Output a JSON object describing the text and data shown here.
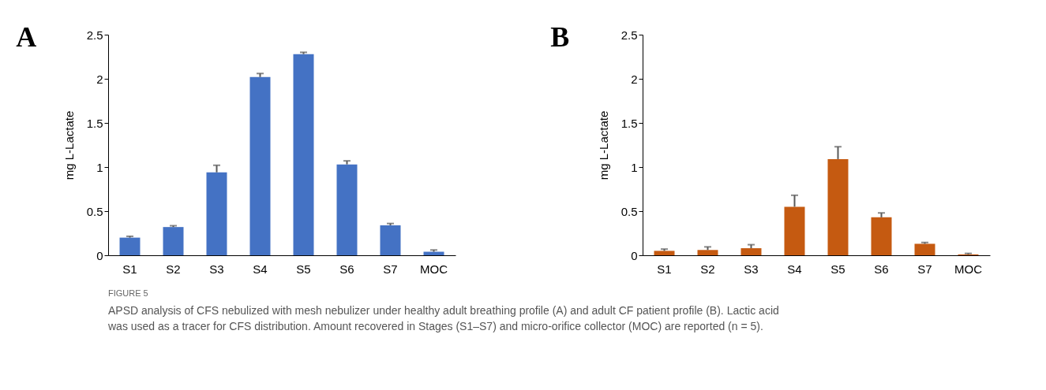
{
  "chart_data": [
    {
      "type": "bar",
      "title": "A",
      "ylabel": "mg L-Lactate",
      "categories": [
        "S1",
        "S2",
        "S3",
        "S4",
        "S5",
        "S6",
        "S7",
        "MOC"
      ],
      "series": [
        {
          "color": "#4472c4",
          "values": [
            0.2,
            0.32,
            0.94,
            2.02,
            2.28,
            1.03,
            0.34,
            0.04
          ],
          "errors": [
            [
              0.2,
              0.215
            ],
            [
              0.32,
              0.335
            ],
            [
              0.94,
              1.02
            ],
            [
              2.02,
              2.06
            ],
            [
              2.28,
              2.3
            ],
            [
              1.03,
              1.07
            ],
            [
              0.34,
              0.36
            ],
            [
              0.04,
              0.06
            ]
          ]
        }
      ],
      "ylim": [
        0,
        2.5
      ],
      "yticks": [
        0,
        0.5,
        1,
        1.5,
        2,
        2.5
      ],
      "grid": false,
      "annotations": [
        "FIGURE 5",
        "APSD analysis of CFS nebulized with mesh nebulizer under healthy adult breathing profile (A) and adult CF patient profile (B). Lactic acid was used as a tracer for CFS distribution. Amount recovered in Stages (S1–S7) and micro-orifice collector (MOC) are reported (n = 5)."
      ]
    },
    {
      "type": "bar",
      "title": "B",
      "ylabel": "mg L-Lactate",
      "categories": [
        "S1",
        "S2",
        "S3",
        "S4",
        "S5",
        "S6",
        "S7",
        "MOC"
      ],
      "series": [
        {
          "color": "#c55a11",
          "values": [
            0.05,
            0.06,
            0.08,
            0.55,
            1.09,
            0.43,
            0.13,
            0.01
          ],
          "errors": [
            [
              0.05,
              0.07
            ],
            [
              0.06,
              0.095
            ],
            [
              0.08,
              0.12
            ],
            [
              0.55,
              0.68
            ],
            [
              1.09,
              1.23
            ],
            [
              0.43,
              0.48
            ],
            [
              0.13,
              0.145
            ],
            [
              0.01,
              0.021
            ]
          ]
        }
      ],
      "ylim": [
        0,
        2.5
      ],
      "yticks": [
        0,
        0.5,
        1,
        1.5,
        2,
        2.5
      ],
      "grid": false
    }
  ]
}
